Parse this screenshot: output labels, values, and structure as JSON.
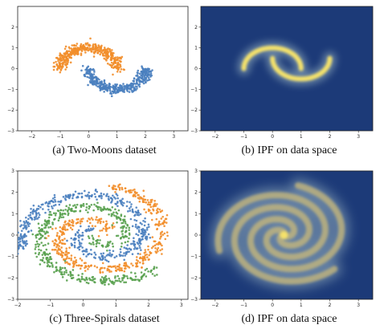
{
  "captions": {
    "a": "(a) Two-Moons dataset",
    "b": "(b) IPF on data space",
    "c": "(c) Three-Spirals dataset",
    "d": "(d) IPF on data space"
  },
  "colors": {
    "orange": "#f28e2b",
    "blue": "#4a7fbf",
    "green": "#59a14f",
    "heat_bg": "#1c3a78",
    "heat_hot": "#f5e26a"
  },
  "chart_data": [
    {
      "id": "a",
      "type": "scatter",
      "title": "",
      "xlabel": "",
      "ylabel": "",
      "xlim": [
        -2.5,
        3.5
      ],
      "ylim": [
        -3,
        3
      ],
      "xticks": [
        -2,
        -1,
        0,
        1,
        2,
        3
      ],
      "yticks": [
        -3,
        -2,
        -1,
        0,
        1,
        2
      ],
      "grid": false,
      "series": [
        {
          "color": "orange",
          "shape": "upper-moon",
          "center": [
            0,
            0
          ],
          "radius": 1.0,
          "noise": 0.12,
          "n": 420
        },
        {
          "color": "blue",
          "shape": "lower-moon",
          "center": [
            1,
            0.5
          ],
          "radius": 1.0,
          "noise": 0.12,
          "n": 420
        }
      ]
    },
    {
      "id": "b",
      "type": "heatmap",
      "title": "",
      "xlabel": "",
      "ylabel": "",
      "xlim": [
        -2.5,
        3.5
      ],
      "ylim": [
        -3,
        3
      ],
      "xticks": [
        -2,
        -1,
        0,
        1,
        2,
        3
      ],
      "yticks": [
        -3,
        -2,
        -1,
        0,
        1,
        2
      ],
      "grid": false,
      "density_of": "two-moons"
    },
    {
      "id": "c",
      "type": "scatter",
      "title": "",
      "xlabel": "",
      "ylabel": "",
      "xlim": [
        -2,
        3.2
      ],
      "ylim": [
        -3,
        3
      ],
      "xticks": [
        -2,
        -1,
        0,
        1,
        2,
        3
      ],
      "yticks": [
        -3,
        -2,
        -1,
        0,
        1,
        2,
        3
      ],
      "grid": false,
      "series": [
        {
          "color": "blue",
          "shape": "spiral",
          "arm_offset_deg": 90,
          "center": [
            0.4,
            0
          ],
          "n": 450
        },
        {
          "color": "orange",
          "shape": "spiral",
          "arm_offset_deg": 330,
          "center": [
            0.4,
            0
          ],
          "n": 450
        },
        {
          "color": "green",
          "shape": "spiral",
          "arm_offset_deg": 210,
          "center": [
            0.4,
            0
          ],
          "n": 450
        }
      ]
    },
    {
      "id": "d",
      "type": "heatmap",
      "title": "",
      "xlabel": "",
      "ylabel": "",
      "xlim": [
        -2.5,
        3.5
      ],
      "ylim": [
        -3,
        3
      ],
      "xticks": [
        -2,
        -1,
        0,
        1,
        2,
        3
      ],
      "yticks": [
        -3,
        -2,
        -1,
        0,
        1,
        2,
        3
      ],
      "grid": false,
      "density_of": "three-spirals"
    }
  ]
}
